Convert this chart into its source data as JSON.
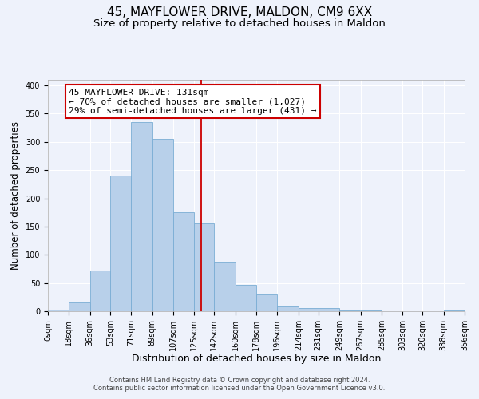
{
  "title": "45, MAYFLOWER DRIVE, MALDON, CM9 6XX",
  "subtitle": "Size of property relative to detached houses in Maldon",
  "xlabel": "Distribution of detached houses by size in Maldon",
  "ylabel": "Number of detached properties",
  "bar_labels": [
    "0sqm",
    "18sqm",
    "36sqm",
    "53sqm",
    "71sqm",
    "89sqm",
    "107sqm",
    "125sqm",
    "142sqm",
    "160sqm",
    "178sqm",
    "196sqm",
    "214sqm",
    "231sqm",
    "249sqm",
    "267sqm",
    "285sqm",
    "303sqm",
    "320sqm",
    "338sqm",
    "356sqm"
  ],
  "bar_values": [
    3,
    15,
    72,
    240,
    335,
    305,
    175,
    155,
    87,
    46,
    29,
    8,
    5,
    5,
    2,
    1,
    0,
    0,
    0,
    2
  ],
  "bar_color": "#b8d0ea",
  "bar_edge_color": "#7aadd4",
  "background_color": "#eef2fb",
  "grid_color": "#ffffff",
  "vline_x": 131,
  "vline_color": "#cc0000",
  "annotation_text": "45 MAYFLOWER DRIVE: 131sqm\n← 70% of detached houses are smaller (1,027)\n29% of semi-detached houses are larger (431) →",
  "annotation_box_color": "#cc0000",
  "ylim": [
    0,
    410
  ],
  "footer1": "Contains HM Land Registry data © Crown copyright and database right 2024.",
  "footer2": "Contains public sector information licensed under the Open Government Licence v3.0.",
  "title_fontsize": 11,
  "subtitle_fontsize": 9.5,
  "xlabel_fontsize": 9,
  "ylabel_fontsize": 8.5,
  "tick_fontsize": 7,
  "annot_fontsize": 8,
  "footer_fontsize": 6
}
